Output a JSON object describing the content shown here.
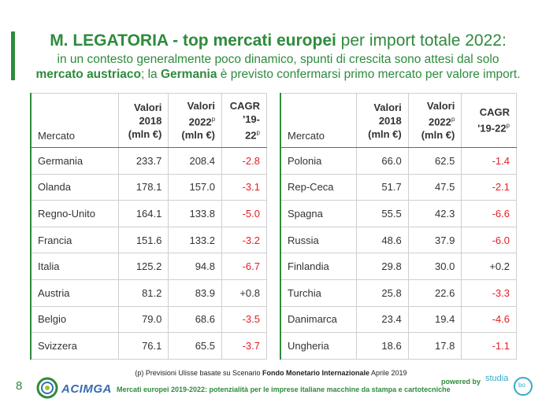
{
  "header": {
    "title_bold": "M. LEGATORIA - top mercati europei",
    "title_rest": " per import totale 2022:",
    "subtitle_line1": "in un contesto generalmente poco dinamico, spunti di crescita sono attesi dal solo",
    "subtitle_bold1": "mercato austriaco",
    "subtitle_mid": "; la ",
    "subtitle_bold2": "Germania",
    "subtitle_end": " è previsto confermarsi primo mercato per valore import."
  },
  "table_headers": {
    "market": "Mercato",
    "v2018_line1": "Valori",
    "v2018_line2": "2018",
    "v2018_line3": "(mln €)",
    "v2022_line1": "Valori",
    "v2022_line2": "2022",
    "v2022_sup": "p",
    "v2022_line3": "(mln €)",
    "cagr_line1": "CAGR",
    "cagr_line2": "'19-22",
    "cagr_sup": "p"
  },
  "left_rows": [
    {
      "market": "Germania",
      "v2018": "233.7",
      "v2022": "208.4",
      "cagr": "-2.8"
    },
    {
      "market": "Olanda",
      "v2018": "178.1",
      "v2022": "157.0",
      "cagr": "-3.1"
    },
    {
      "market": "Regno-Unito",
      "v2018": "164.1",
      "v2022": "133.8",
      "cagr": "-5.0"
    },
    {
      "market": "Francia",
      "v2018": "151.6",
      "v2022": "133.2",
      "cagr": "-3.2"
    },
    {
      "market": "Italia",
      "v2018": "125.2",
      "v2022": "94.8",
      "cagr": "-6.7"
    },
    {
      "market": "Austria",
      "v2018": "81.2",
      "v2022": "83.9",
      "cagr": "+0.8"
    },
    {
      "market": "Belgio",
      "v2018": "79.0",
      "v2022": "68.6",
      "cagr": "-3.5"
    },
    {
      "market": "Svizzera",
      "v2018": "76.1",
      "v2022": "65.5",
      "cagr": "-3.7"
    }
  ],
  "right_rows": [
    {
      "market": "Polonia",
      "v2018": "66.0",
      "v2022": "62.5",
      "cagr": "-1.4"
    },
    {
      "market": "Rep-Ceca",
      "v2018": "51.7",
      "v2022": "47.5",
      "cagr": "-2.1"
    },
    {
      "market": "Spagna",
      "v2018": "55.5",
      "v2022": "42.3",
      "cagr": "-6.6"
    },
    {
      "market": "Russia",
      "v2018": "48.6",
      "v2022": "37.9",
      "cagr": "-6.0"
    },
    {
      "market": "Finlandia",
      "v2018": "29.8",
      "v2022": "30.0",
      "cagr": "+0.2"
    },
    {
      "market": "Turchia",
      "v2018": "25.8",
      "v2022": "22.6",
      "cagr": "-3.3"
    },
    {
      "market": "Danimarca",
      "v2018": "23.4",
      "v2022": "19.4",
      "cagr": "-4.6"
    },
    {
      "market": "Ungheria",
      "v2018": "18.6",
      "v2022": "17.8",
      "cagr": "-1.1"
    }
  ],
  "footnote": {
    "pre": "(p) Previsioni Ulisse basate su Scenario ",
    "bold": "Fondo Monetario  Internazionale",
    "post": " Aprile 2019"
  },
  "footer": {
    "page_number": "8",
    "logo_text": "ACIMGA",
    "text": "Mercati europei 2019-2022: potenzialità per le imprese italiane macchine da stampa e cartotecniche",
    "powered_by": "powered by",
    "studia_text": "studia",
    "studia_inner": "bo"
  },
  "colors": {
    "accent": "#2e8b3c",
    "negative": "#e31e24",
    "logo_blue": "#3a6bb0",
    "studia": "#35a9c8"
  }
}
